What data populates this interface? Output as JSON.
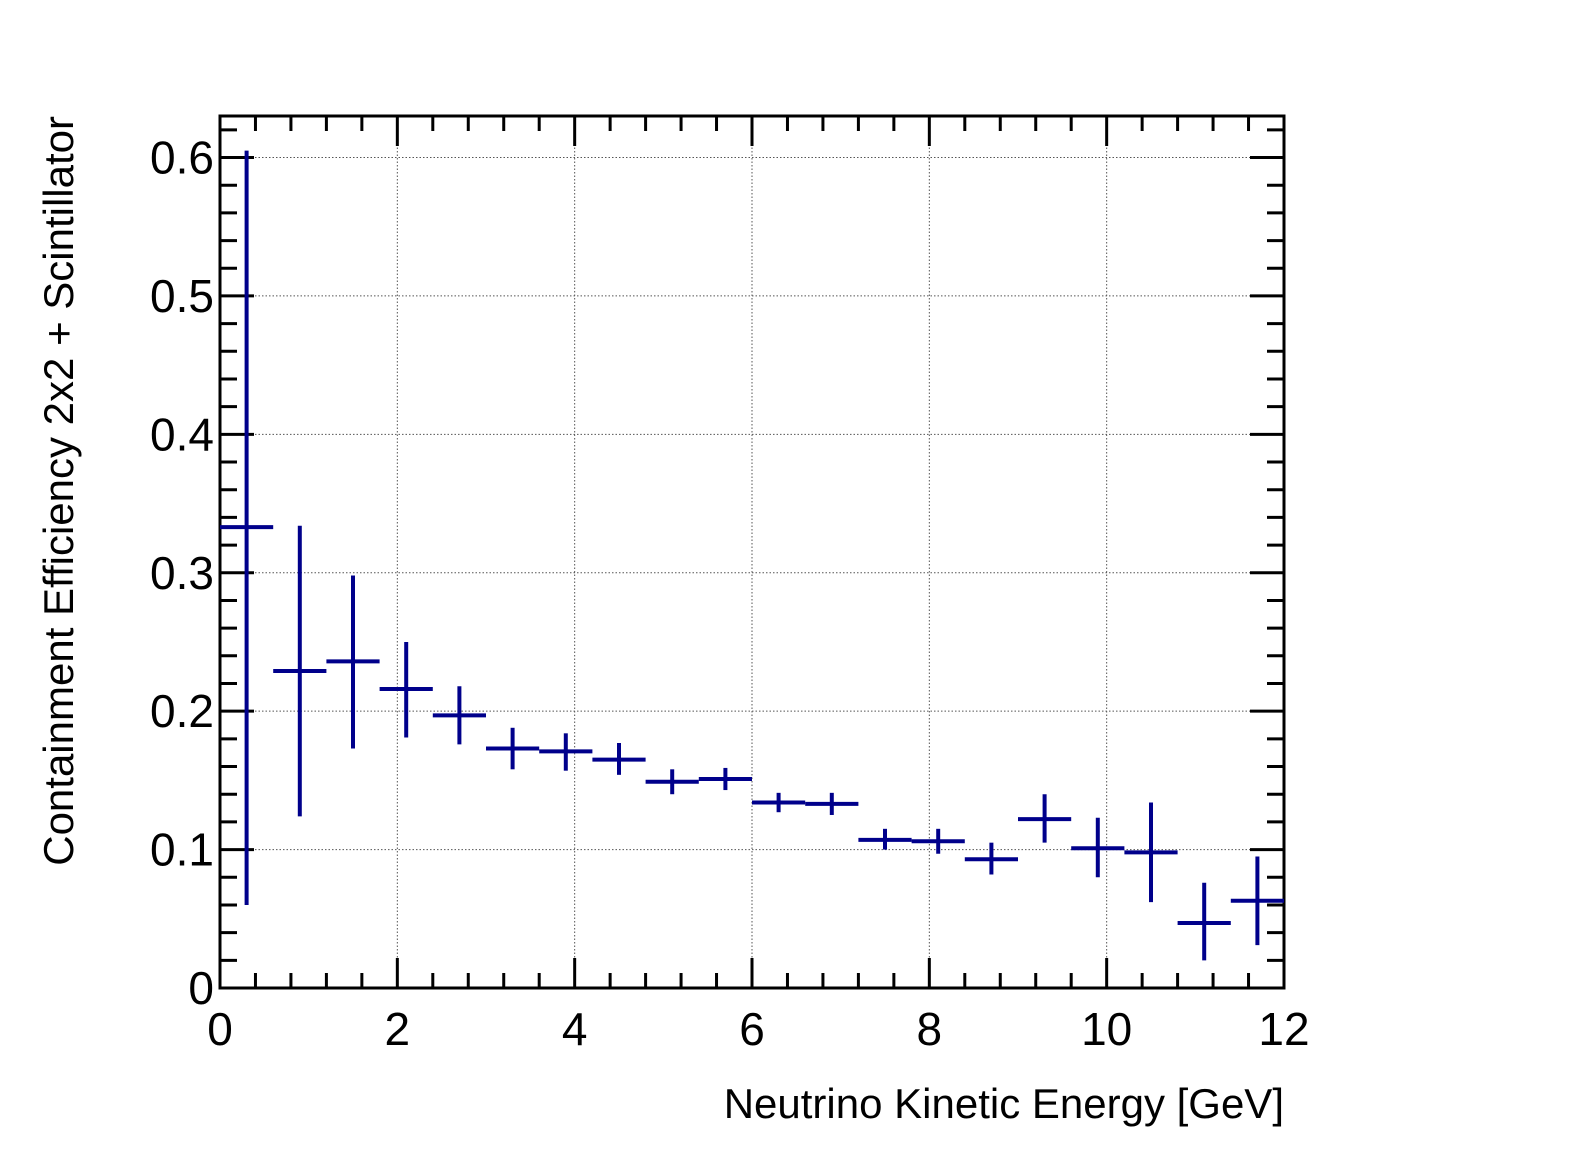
{
  "chart_data": {
    "type": "scatter",
    "style": "histogram-error-bars",
    "xlabel": "Neutrino Kinetic Energy [GeV]",
    "ylabel": "Containment Efficiency 2x2 + Scintillator",
    "xlim": [
      0,
      12
    ],
    "ylim": [
      0,
      0.63
    ],
    "x_ticks": [
      0,
      2,
      4,
      6,
      8,
      10,
      12
    ],
    "x_tick_labels": [
      "0",
      "2",
      "4",
      "6",
      "8",
      "10",
      "12"
    ],
    "y_ticks": [
      0,
      0.1,
      0.2,
      0.3,
      0.4,
      0.5,
      0.6
    ],
    "y_tick_labels": [
      "0",
      "0.1",
      "0.2",
      "0.3",
      "0.4",
      "0.5",
      "0.6"
    ],
    "grid": true,
    "color": "#00008b",
    "bin_width": 0.6,
    "points": [
      {
        "x": 0.3,
        "y": 0.333,
        "y_low": 0.06,
        "y_high": 0.605
      },
      {
        "x": 0.9,
        "y": 0.229,
        "y_low": 0.124,
        "y_high": 0.334
      },
      {
        "x": 1.5,
        "y": 0.236,
        "y_low": 0.173,
        "y_high": 0.298
      },
      {
        "x": 2.1,
        "y": 0.216,
        "y_low": 0.181,
        "y_high": 0.25
      },
      {
        "x": 2.7,
        "y": 0.197,
        "y_low": 0.176,
        "y_high": 0.218
      },
      {
        "x": 3.3,
        "y": 0.173,
        "y_low": 0.158,
        "y_high": 0.188
      },
      {
        "x": 3.9,
        "y": 0.171,
        "y_low": 0.157,
        "y_high": 0.184
      },
      {
        "x": 4.5,
        "y": 0.165,
        "y_low": 0.154,
        "y_high": 0.177
      },
      {
        "x": 5.1,
        "y": 0.149,
        "y_low": 0.14,
        "y_high": 0.158
      },
      {
        "x": 5.7,
        "y": 0.151,
        "y_low": 0.143,
        "y_high": 0.159
      },
      {
        "x": 6.3,
        "y": 0.134,
        "y_low": 0.127,
        "y_high": 0.141
      },
      {
        "x": 6.9,
        "y": 0.133,
        "y_low": 0.125,
        "y_high": 0.141
      },
      {
        "x": 7.5,
        "y": 0.107,
        "y_low": 0.1,
        "y_high": 0.115
      },
      {
        "x": 8.1,
        "y": 0.106,
        "y_low": 0.097,
        "y_high": 0.115
      },
      {
        "x": 8.7,
        "y": 0.093,
        "y_low": 0.082,
        "y_high": 0.105
      },
      {
        "x": 9.3,
        "y": 0.122,
        "y_low": 0.105,
        "y_high": 0.14
      },
      {
        "x": 9.9,
        "y": 0.101,
        "y_low": 0.08,
        "y_high": 0.123
      },
      {
        "x": 10.5,
        "y": 0.098,
        "y_low": 0.062,
        "y_high": 0.134
      },
      {
        "x": 11.1,
        "y": 0.047,
        "y_low": 0.02,
        "y_high": 0.076
      },
      {
        "x": 11.7,
        "y": 0.063,
        "y_low": 0.031,
        "y_high": 0.095
      }
    ]
  }
}
